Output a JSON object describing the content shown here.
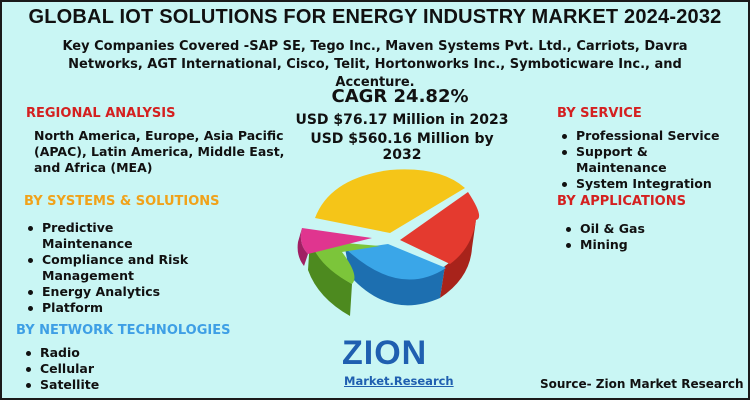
{
  "title": "GLOBAL IOT SOLUTIONS FOR ENERGY INDUSTRY MARKET 2024-2032",
  "companies": "Key Companies Covered -SAP SE, Tego Inc., Maven Systems Pvt. Ltd., Carriots, Davra Networks, AGT International, Cisco, Telit, Hortonworks Inc., Symboticware Inc., and Accenture.",
  "regional": {
    "heading": "REGIONAL ANALYSIS",
    "text": "North America, Europe, Asia Pacific (APAC), Latin America, Middle East, and Africa (MEA)"
  },
  "systems": {
    "heading": "BY SYSTEMS & SOLUTIONS",
    "items": [
      "Predictive Maintenance",
      "Compliance and Risk Management",
      "Energy Analytics",
      "Platform"
    ]
  },
  "network": {
    "heading": "BY NETWORK TECHNOLOGIES",
    "items": [
      "Radio",
      "Cellular",
      "Satellite"
    ]
  },
  "service": {
    "heading": "BY SERVICE",
    "items": [
      "Professional Service",
      "Support & Maintenance",
      "System Integration"
    ]
  },
  "applications": {
    "heading": "BY APPLICATIONS",
    "items": [
      "Oil & Gas",
      "Mining"
    ]
  },
  "stats": {
    "cagr": "CAGR 24.82%",
    "usd_2023": "USD $76.17  Million in 2023",
    "usd_2032": "USD $560.16 Million by 2032"
  },
  "logo": {
    "word": "ZION",
    "sub": "Market.Research"
  },
  "source": "Source- Zion Market Research",
  "colors": {
    "background": "#c9f6f4",
    "heading_red": "#d42020",
    "heading_orange": "#f0a21a",
    "heading_blue": "#3e9fe5",
    "pie_yellow": "#f5c518",
    "pie_red": "#e43a2f",
    "pie_blue": "#3aa6e8",
    "pie_green": "#7cc53a",
    "pie_magenta": "#e0358f"
  }
}
